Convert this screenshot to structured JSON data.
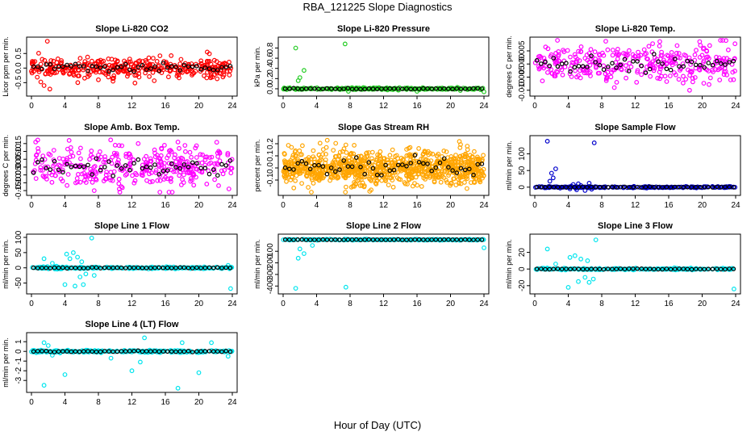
{
  "figure": {
    "title": "RBA_121225  Slope Diagnostics",
    "xlabel": "Hour of Day (UTC)"
  },
  "colors": {
    "red": "#ff0000",
    "green": "#22cc22",
    "magenta": "#ff00ff",
    "orange": "#ffa500",
    "blue": "#0000cc",
    "cyan": "#00e5ee",
    "black": "#000000"
  },
  "chart_data": [
    {
      "type": "scatter",
      "title": "Slope Li-820 CO2",
      "xlabel": "",
      "ylabel": "Licor ppm per min.",
      "xlim": [
        0,
        24
      ],
      "ylim": [
        -0.85,
        0.95
      ],
      "xticks": [
        "0",
        "4",
        "8",
        "12",
        "16",
        "20",
        "24"
      ],
      "yticks": [
        "-0.5",
        "0.0",
        "0.5"
      ],
      "ytick_values": [
        -0.5,
        0,
        0.5
      ],
      "color": "red",
      "noise": 0.18,
      "n": 360,
      "outliers": [
        [
          1.9,
          0.92
        ],
        [
          2.2,
          -0.72
        ],
        [
          1.5,
          -0.6
        ],
        [
          21.0,
          0.55
        ],
        [
          8.0,
          -0.4
        ]
      ]
    },
    {
      "type": "scatter",
      "title": "Slope Li-820 Pressure",
      "xlabel": "",
      "ylabel": "kPa per min.",
      "xlim": [
        0,
        24
      ],
      "ylim": [
        -0.08,
        0.95
      ],
      "xticks": [
        "0",
        "4",
        "8",
        "12",
        "16",
        "20",
        "24"
      ],
      "yticks": [
        "0.0",
        "0.2",
        "0.4",
        "0.6",
        "0.8"
      ],
      "ytick_values": [
        0,
        0.2,
        0.4,
        0.6,
        0.8
      ],
      "color": "green",
      "noise": 0.01,
      "n": 240,
      "outliers": [
        [
          1.5,
          0.8
        ],
        [
          7.4,
          0.88
        ],
        [
          2.0,
          0.22
        ],
        [
          1.8,
          0.16
        ],
        [
          2.5,
          0.36
        ],
        [
          7.8,
          -0.05
        ],
        [
          24.0,
          -0.06
        ],
        [
          16.0,
          -0.05
        ]
      ]
    },
    {
      "type": "scatter",
      "title": "Slope Li-820 Temp.",
      "xlabel": "",
      "ylabel": "degrees C per min.",
      "xlim": [
        0,
        24
      ],
      "ylim": [
        -0.011,
        0.009
      ],
      "xticks": [
        "0",
        "4",
        "8",
        "12",
        "16",
        "20",
        "24"
      ],
      "yticks": [
        "-0.010",
        "-0.005",
        "0.000",
        "0.005"
      ],
      "ytick_values": [
        -0.01,
        -0.005,
        0,
        0.005
      ],
      "color": "magenta",
      "noise": 0.0035,
      "n": 320,
      "outliers": [
        [
          9.5,
          -0.009
        ],
        [
          18.5,
          -0.01
        ],
        [
          19.7,
          0.0085
        ],
        [
          17.0,
          0.007
        ]
      ]
    },
    {
      "type": "scatter",
      "title": "Slope Amb. Box Temp.",
      "xlabel": "",
      "ylabel": "degrees C per min.",
      "xlim": [
        0,
        24
      ],
      "ylim": [
        -0.16,
        0.18
      ],
      "xticks": [
        "0",
        "4",
        "8",
        "12",
        "16",
        "20",
        "24"
      ],
      "yticks": [
        "-0.15",
        "-0.10",
        "-0.05",
        "0.00",
        "0.05",
        "0.10",
        "0.15"
      ],
      "ytick_values": [
        -0.15,
        -0.1,
        -0.05,
        0,
        0.05,
        0.1,
        0.15
      ],
      "color": "magenta",
      "noise": 0.06,
      "n": 340,
      "outliers": [
        [
          0.5,
          0.16
        ],
        [
          4.5,
          0.17
        ],
        [
          10.0,
          0.14
        ],
        [
          17.5,
          0.16
        ],
        [
          7.5,
          -0.15
        ],
        [
          10.5,
          -0.14
        ]
      ]
    },
    {
      "type": "scatter",
      "title": "Slope Gas Stream RH",
      "xlabel": "",
      "ylabel": "percent per min.",
      "xlim": [
        0,
        24
      ],
      "ylim": [
        -0.2,
        0.24
      ],
      "xticks": [
        "0",
        "4",
        "8",
        "12",
        "16",
        "20",
        "24"
      ],
      "yticks": [
        "-0.1",
        "0.0",
        "0.1",
        "0.2"
      ],
      "ytick_values": [
        -0.1,
        0,
        0.1,
        0.2
      ],
      "color": "orange",
      "noise": 0.07,
      "n": 900,
      "outliers": [
        [
          1.0,
          0.17
        ],
        [
          3.0,
          -0.16
        ],
        [
          7.5,
          0.19
        ],
        [
          22.0,
          0.18
        ],
        [
          15.5,
          -0.15
        ]
      ]
    },
    {
      "type": "scatter",
      "title": "Slope Sample Flow",
      "xlabel": "",
      "ylabel": "ml/min per min.",
      "xlim": [
        0,
        24
      ],
      "ylim": [
        -15,
        145
      ],
      "xticks": [
        "0",
        "4",
        "8",
        "12",
        "16",
        "20",
        "24"
      ],
      "yticks": [
        "0",
        "50",
        "100"
      ],
      "ytick_values": [
        0,
        50,
        100
      ],
      "color": "blue",
      "noise": 1.0,
      "n": 220,
      "outliers": [
        [
          1.5,
          138
        ],
        [
          7.1,
          133
        ],
        [
          2.5,
          55
        ],
        [
          2.0,
          42
        ],
        [
          2.2,
          28
        ],
        [
          1.8,
          18
        ],
        [
          4.2,
          -5
        ],
        [
          4.6,
          8
        ],
        [
          5.0,
          -8
        ],
        [
          5.5,
          5
        ],
        [
          6.0,
          -10
        ],
        [
          6.5,
          12
        ],
        [
          6.8,
          -6
        ],
        [
          5.2,
          10
        ],
        [
          4.9,
          -3
        ]
      ]
    },
    {
      "type": "scatter",
      "title": "Slope Line 1 Flow",
      "xlabel": "",
      "ylabel": "ml/min per min.",
      "xlim": [
        0,
        24
      ],
      "ylim": [
        -75,
        100
      ],
      "xticks": [
        "0",
        "4",
        "8",
        "12",
        "16",
        "20",
        "24"
      ],
      "yticks": [
        "-50",
        "0",
        "50",
        "100"
      ],
      "ytick_values": [
        -50,
        0,
        50,
        100
      ],
      "color": "cyan",
      "noise": 1.5,
      "n": 220,
      "outliers": [
        [
          1.5,
          30
        ],
        [
          2.5,
          15
        ],
        [
          4.2,
          45
        ],
        [
          4.6,
          30
        ],
        [
          5.0,
          50
        ],
        [
          5.5,
          35
        ],
        [
          6.0,
          20
        ],
        [
          6.5,
          -20
        ],
        [
          7.2,
          98
        ],
        [
          4.0,
          -55
        ],
        [
          5.2,
          -60
        ],
        [
          6.2,
          -55
        ],
        [
          7.5,
          -25
        ],
        [
          5.8,
          -30
        ],
        [
          23.8,
          -68
        ],
        [
          23.5,
          8
        ]
      ]
    },
    {
      "type": "scatter",
      "title": "Slope Line 2 Flow",
      "xlabel": "",
      "ylabel": "ml/min per min.",
      "xlim": [
        0,
        24
      ],
      "ylim": [
        -440,
        20
      ],
      "xticks": [
        "0",
        "4",
        "8",
        "12",
        "16",
        "20",
        "24"
      ],
      "yticks": [
        "-400",
        "-300",
        "-200",
        "-100"
      ],
      "ytick_values": [
        -400,
        -300,
        -200,
        -100
      ],
      "color": "cyan",
      "noise": 2.0,
      "n": 220,
      "outliers": [
        [
          1.5,
          -420
        ],
        [
          7.5,
          -410
        ],
        [
          2.0,
          -80
        ],
        [
          2.5,
          -120
        ],
        [
          1.8,
          -160
        ],
        [
          3.5,
          -50
        ],
        [
          24.0,
          -70
        ]
      ]
    },
    {
      "type": "scatter",
      "title": "Slope Line 3 Flow",
      "xlabel": "",
      "ylabel": "ml/min per min.",
      "xlim": [
        0,
        24
      ],
      "ylim": [
        -26,
        38
      ],
      "xticks": [
        "0",
        "4",
        "8",
        "12",
        "16",
        "20",
        "24"
      ],
      "yticks": [
        "-20",
        "0",
        "20"
      ],
      "ytick_values": [
        -20,
        0,
        20
      ],
      "color": "cyan",
      "noise": 0.5,
      "n": 220,
      "outliers": [
        [
          1.5,
          24
        ],
        [
          2.5,
          6
        ],
        [
          4.2,
          14
        ],
        [
          4.8,
          16
        ],
        [
          5.5,
          12
        ],
        [
          6.0,
          -10
        ],
        [
          6.5,
          -16
        ],
        [
          7.0,
          -12
        ],
        [
          7.3,
          35
        ],
        [
          4.0,
          -22
        ],
        [
          5.2,
          -15
        ],
        [
          23.8,
          -24
        ],
        [
          6.3,
          10
        ]
      ]
    },
    {
      "type": "scatter",
      "title": "Slope Line 4 (LT) Flow",
      "xlabel": "",
      "ylabel": "ml/min per min.",
      "xlim": [
        0,
        24
      ],
      "ylim": [
        -3.9,
        1.6
      ],
      "xticks": [
        "0",
        "4",
        "8",
        "12",
        "16",
        "20",
        "24"
      ],
      "yticks": [
        "-3",
        "-2",
        "-1",
        "0",
        "1"
      ],
      "ytick_values": [
        -3,
        -2,
        -1,
        0,
        1
      ],
      "color": "cyan",
      "noise": 0.06,
      "n": 240,
      "outliers": [
        [
          1.5,
          -3.5
        ],
        [
          4.0,
          -2.4
        ],
        [
          1.5,
          0.9
        ],
        [
          2.0,
          0.6
        ],
        [
          12.0,
          -2.0
        ],
        [
          13.5,
          1.4
        ],
        [
          13.0,
          -1.1
        ],
        [
          17.5,
          -3.8
        ],
        [
          18.0,
          0.9
        ],
        [
          20.0,
          -2.2
        ],
        [
          21.5,
          0.9
        ],
        [
          23.5,
          -0.5
        ],
        [
          9.5,
          -0.7
        ],
        [
          2.5,
          -0.4
        ]
      ]
    }
  ]
}
